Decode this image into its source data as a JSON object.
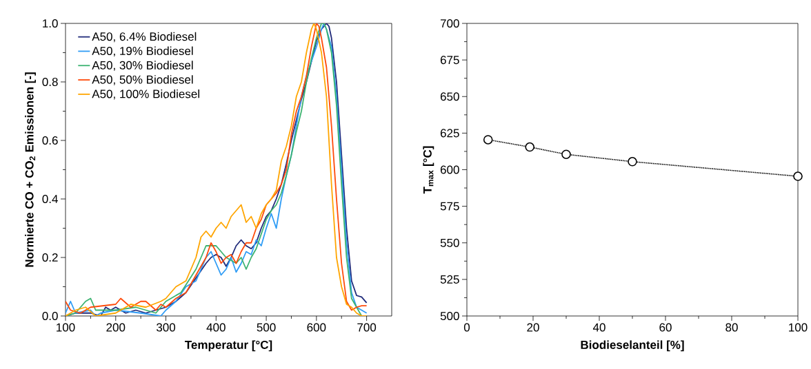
{
  "chart_data": [
    {
      "type": "line",
      "xlabel": "Temperatur [°C]",
      "ylabel": "Normierte CO + CO$_{2}$ Emissionen [-]",
      "xlim": [
        100,
        750
      ],
      "ylim": [
        0,
        1.0
      ],
      "xticks": [
        100,
        200,
        300,
        400,
        500,
        600,
        700
      ],
      "yticks": [
        {
          "value": 0,
          "label": "0.0"
        },
        {
          "value": 0.2,
          "label": "0.2"
        },
        {
          "value": 0.4,
          "label": "0.4"
        },
        {
          "value": 0.6,
          "label": "0.6"
        },
        {
          "value": 0.8,
          "label": "0.8"
        },
        {
          "value": 1.0,
          "label": "1.0"
        }
      ],
      "legend": "top left",
      "grid": false,
      "marker": "none",
      "line_style": "solid",
      "series": [
        {
          "name": "A50, 6.4% Biodiesel",
          "color": "#1f2a7a",
          "x": [
            100,
            120,
            150,
            170,
            180,
            190,
            200,
            220,
            240,
            260,
            280,
            300,
            320,
            340,
            360,
            380,
            390,
            400,
            410,
            420,
            430,
            440,
            450,
            460,
            470,
            480,
            490,
            500,
            510,
            520,
            530,
            540,
            550,
            560,
            570,
            580,
            590,
            600,
            610,
            620,
            625,
            630,
            640,
            650,
            660,
            670,
            680,
            690,
            700
          ],
          "values": [
            0,
            0.01,
            0.01,
            0,
            0.03,
            0.02,
            0.03,
            0.01,
            0.02,
            0.01,
            0.02,
            0.03,
            0.05,
            0.08,
            0.13,
            0.18,
            0.2,
            0.21,
            0.2,
            0.17,
            0.2,
            0.24,
            0.26,
            0.24,
            0.23,
            0.25,
            0.3,
            0.34,
            0.36,
            0.4,
            0.45,
            0.52,
            0.6,
            0.67,
            0.74,
            0.8,
            0.87,
            0.94,
            0.98,
            1.0,
            0.99,
            0.95,
            0.8,
            0.55,
            0.3,
            0.12,
            0.07,
            0.065,
            0.045
          ]
        },
        {
          "name": "A50, 19% Biodiesel",
          "color": "#2f9cf5",
          "x": [
            100,
            110,
            120,
            150,
            160,
            170,
            200,
            250,
            290,
            300,
            320,
            340,
            360,
            380,
            390,
            400,
            410,
            420,
            430,
            440,
            450,
            460,
            470,
            480,
            490,
            500,
            510,
            520,
            530,
            540,
            550,
            560,
            570,
            580,
            590,
            600,
            610,
            615,
            620,
            630,
            640,
            650,
            660,
            670,
            680,
            690,
            700
          ],
          "values": [
            0.01,
            0.05,
            0.01,
            0.02,
            0,
            0.01,
            0.02,
            0.01,
            0,
            0.02,
            0.05,
            0.1,
            0.12,
            0.2,
            0.22,
            0.18,
            0.14,
            0.16,
            0.2,
            0.15,
            0.18,
            0.22,
            0.21,
            0.26,
            0.24,
            0.3,
            0.35,
            0.3,
            0.4,
            0.48,
            0.55,
            0.65,
            0.75,
            0.82,
            0.87,
            0.92,
            0.98,
            1.0,
            0.98,
            0.92,
            0.75,
            0.5,
            0.25,
            0.08,
            0.03,
            0.02,
            0.01
          ]
        },
        {
          "name": "A50, 30% Biodiesel",
          "color": "#3cb371",
          "x": [
            100,
            120,
            140,
            150,
            160,
            200,
            240,
            280,
            300,
            330,
            360,
            380,
            400,
            420,
            440,
            450,
            460,
            470,
            480,
            490,
            500,
            510,
            520,
            530,
            540,
            550,
            560,
            570,
            580,
            590,
            600,
            610,
            615,
            620,
            630,
            640,
            650,
            660,
            670,
            680,
            690,
            700
          ],
          "values": [
            0,
            0.01,
            0.05,
            0.06,
            0.02,
            0.02,
            0.03,
            0.01,
            0.05,
            0.08,
            0.16,
            0.24,
            0.24,
            0.2,
            0.18,
            0.2,
            0.16,
            0.2,
            0.23,
            0.28,
            0.33,
            0.36,
            0.38,
            0.42,
            0.48,
            0.55,
            0.63,
            0.7,
            0.8,
            0.88,
            0.95,
            1.0,
            1.0,
            0.98,
            0.9,
            0.72,
            0.45,
            0.2,
            0.06,
            0.03,
            0,
            0
          ]
        },
        {
          "name": "A50, 50% Biodiesel",
          "color": "#ff4a0a",
          "x": [
            100,
            110,
            130,
            150,
            200,
            210,
            230,
            250,
            260,
            280,
            290,
            300,
            320,
            340,
            360,
            380,
            390,
            400,
            410,
            420,
            430,
            440,
            450,
            460,
            470,
            480,
            490,
            500,
            510,
            520,
            530,
            540,
            550,
            560,
            570,
            580,
            590,
            600,
            605,
            610,
            620,
            630,
            640,
            650,
            660,
            670,
            680,
            690,
            700
          ],
          "values": [
            0.05,
            0.02,
            0.01,
            0.03,
            0.04,
            0.06,
            0.03,
            0.05,
            0.05,
            0.02,
            0.04,
            0.03,
            0.06,
            0.08,
            0.14,
            0.2,
            0.25,
            0.22,
            0.18,
            0.2,
            0.21,
            0.18,
            0.22,
            0.25,
            0.25,
            0.3,
            0.33,
            0.38,
            0.4,
            0.42,
            0.45,
            0.5,
            0.62,
            0.7,
            0.75,
            0.82,
            0.92,
            1.0,
            0.99,
            0.95,
            0.85,
            0.65,
            0.4,
            0.18,
            0.05,
            0.02,
            0.03,
            0.035,
            0.035
          ]
        },
        {
          "name": "A50, 100% Biodiesel",
          "color": "#ffa500",
          "x": [
            100,
            120,
            140,
            160,
            200,
            230,
            260,
            290,
            300,
            320,
            340,
            360,
            370,
            380,
            390,
            400,
            410,
            420,
            430,
            440,
            450,
            460,
            470,
            480,
            490,
            500,
            510,
            520,
            530,
            540,
            550,
            560,
            570,
            580,
            590,
            595,
            600,
            610,
            620,
            630,
            640,
            650,
            660,
            670,
            680,
            690,
            700
          ],
          "values": [
            0,
            0.02,
            0.03,
            0,
            0.01,
            0.04,
            0.03,
            0.05,
            0.06,
            0.1,
            0.12,
            0.2,
            0.27,
            0.29,
            0.27,
            0.3,
            0.32,
            0.3,
            0.34,
            0.36,
            0.38,
            0.32,
            0.34,
            0.3,
            0.35,
            0.38,
            0.4,
            0.43,
            0.53,
            0.58,
            0.65,
            0.75,
            0.8,
            0.9,
            0.98,
            1.0,
            0.98,
            0.9,
            0.75,
            0.45,
            0.2,
            0.1,
            0.04,
            0.03,
            0.01,
            0,
            0
          ]
        }
      ]
    },
    {
      "type": "line",
      "xlabel": "Biodieselanteil [%]",
      "ylabel": "T$_{max}$ [°C]",
      "xlim": [
        0,
        100
      ],
      "ylim": [
        500,
        700
      ],
      "xticks": [
        0,
        20,
        40,
        60,
        80,
        100
      ],
      "yticks": [
        500,
        525,
        550,
        575,
        600,
        625,
        650,
        675,
        700
      ],
      "legend": false,
      "grid": false,
      "marker": "circle",
      "line_style": "dotted",
      "series": [
        {
          "color": "#000000",
          "x": [
            6.4,
            19,
            30,
            50,
            100
          ],
          "values": [
            620.5,
            615.5,
            610.5,
            605.5,
            595.5
          ]
        }
      ]
    }
  ]
}
